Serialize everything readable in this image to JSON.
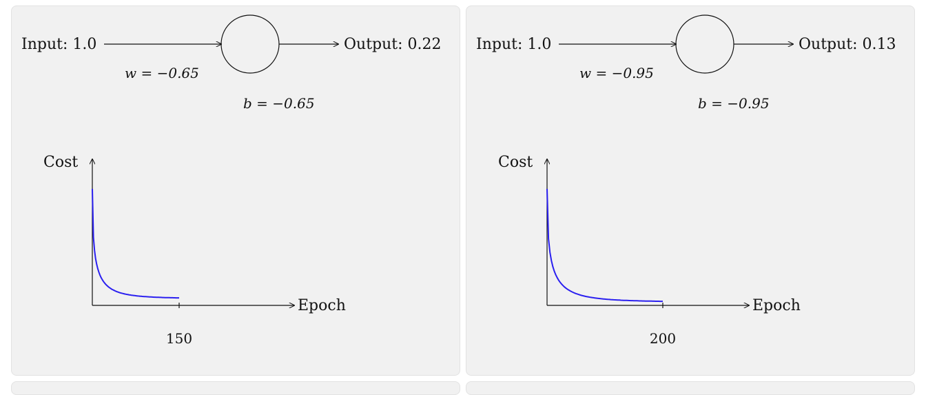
{
  "panels": [
    {
      "input_label": "Input: 1.0",
      "output_label": "Output: 0.22",
      "weight_label": "w = −0.65",
      "bias_label": "b = −0.65",
      "chart_data": {
        "type": "line",
        "xlabel": "Epoch",
        "ylabel": "Cost",
        "x_tick_labels": [
          "150"
        ],
        "series": [
          {
            "color": "#2a1ff0",
            "x": [
              0,
              150
            ],
            "shape": "exponential-decay"
          }
        ]
      }
    },
    {
      "input_label": "Input: 1.0",
      "output_label": "Output: 0.13",
      "weight_label": "w = −0.95",
      "bias_label": "b = −0.95",
      "chart_data": {
        "type": "line",
        "xlabel": "Epoch",
        "ylabel": "Cost",
        "x_tick_labels": [
          "200"
        ],
        "series": [
          {
            "color": "#2a1ff0",
            "x": [
              0,
              200
            ],
            "shape": "exponential-decay"
          }
        ]
      }
    }
  ]
}
